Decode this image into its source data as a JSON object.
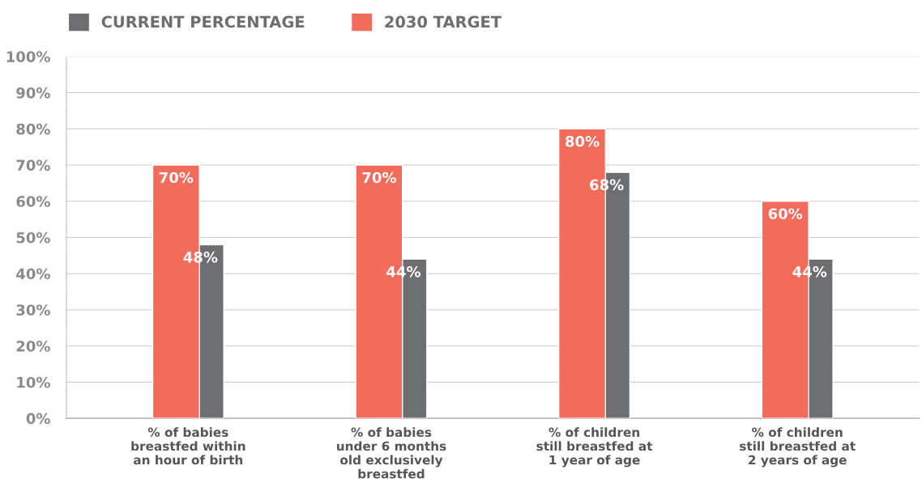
{
  "chart_data": {
    "type": "bar",
    "categories": [
      "% of babies\nbreastfed within\nan hour of birth",
      "% of babies\nunder 6 months\nold exclusively\nbreastfed",
      "% of children\nstill breastfed at\n1 year of age",
      "% of children\nstill breastfed at\n2 years of age"
    ],
    "series": [
      {
        "name": "CURRENT PERCENTAGE",
        "color": "#6d6e71",
        "values": [
          48,
          44,
          68,
          44
        ],
        "value_labels": [
          "48%",
          "44%",
          "68%",
          "44%"
        ]
      },
      {
        "name": "2030 TARGET",
        "color": "#f26b5b",
        "values": [
          70,
          70,
          80,
          60
        ],
        "value_labels": [
          "70%",
          "70%",
          "80%",
          "60%"
        ]
      }
    ],
    "ylim": [
      0,
      100
    ],
    "yticks": [
      {
        "value": 0,
        "label": "0%"
      },
      {
        "value": 10,
        "label": "10%"
      },
      {
        "value": 20,
        "label": "20%"
      },
      {
        "value": 30,
        "label": "30%"
      },
      {
        "value": 40,
        "label": "40%"
      },
      {
        "value": 50,
        "label": "50%"
      },
      {
        "value": 60,
        "label": "60%"
      },
      {
        "value": 70,
        "label": "70%"
      },
      {
        "value": 80,
        "label": "80%"
      },
      {
        "value": 90,
        "label": "90%"
      },
      {
        "value": 100,
        "label": "100%"
      }
    ],
    "grid": "y",
    "legend": "top left"
  }
}
